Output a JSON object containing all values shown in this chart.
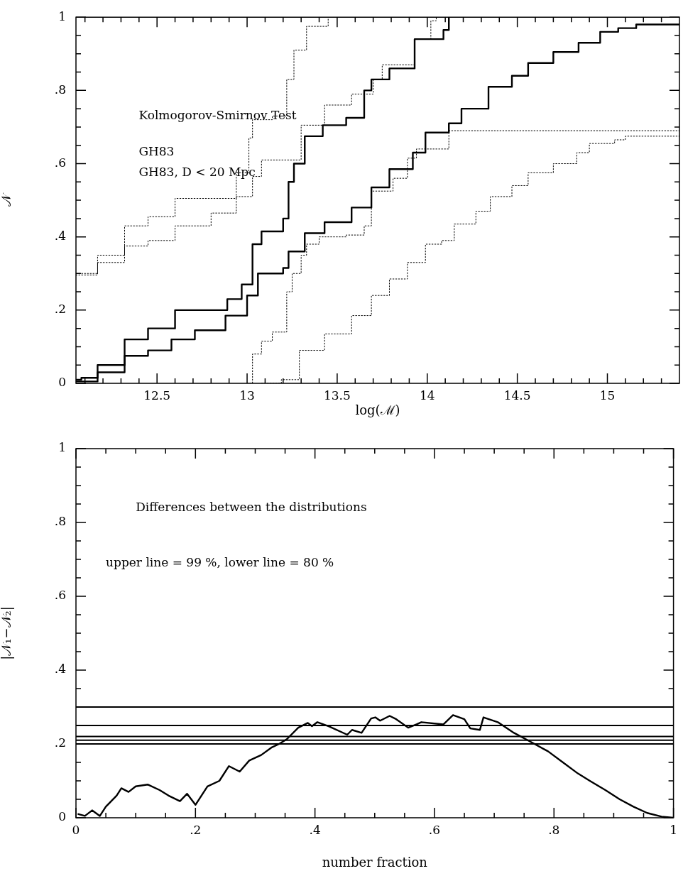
{
  "chart_data": [
    {
      "type": "step",
      "xlabel": "log(ℳ)",
      "ylabel": "𝒩",
      "xlim": [
        12.05,
        15.4
      ],
      "ylim": [
        0,
        1
      ],
      "marker": "none",
      "grid": false,
      "legend": false,
      "xticks": [
        {
          "value": 12.1,
          "label": null
        },
        {
          "value": 12.2,
          "label": null
        },
        {
          "value": 12.3,
          "label": null
        },
        {
          "value": 12.4,
          "label": null
        },
        {
          "value": 12.5,
          "label": "12.5"
        },
        {
          "value": 12.6,
          "label": null
        },
        {
          "value": 12.7,
          "label": null
        },
        {
          "value": 12.8,
          "label": null
        },
        {
          "value": 12.9,
          "label": null
        },
        13,
        {
          "value": 13.1,
          "label": null
        },
        {
          "value": 13.2,
          "label": null
        },
        {
          "value": 13.3,
          "label": null
        },
        {
          "value": 13.4,
          "label": null
        },
        13.5,
        {
          "value": 13.6,
          "label": null
        },
        {
          "value": 13.7,
          "label": null
        },
        {
          "value": 13.8,
          "label": null
        },
        {
          "value": 13.9,
          "label": null
        },
        14,
        {
          "value": 14.1,
          "label": null
        },
        {
          "value": 14.2,
          "label": null
        },
        {
          "value": 14.3,
          "label": null
        },
        {
          "value": 14.4,
          "label": null
        },
        14.5,
        {
          "value": 14.6,
          "label": null
        },
        {
          "value": 14.7,
          "label": null
        },
        {
          "value": 14.8,
          "label": null
        },
        {
          "value": 14.9,
          "label": null
        },
        15,
        {
          "value": 15.1,
          "label": null
        },
        {
          "value": 15.2,
          "label": null
        },
        {
          "value": 15.3,
          "label": null
        }
      ],
      "yticks": [
        {
          "value": 0,
          "label": "0"
        },
        {
          "value": 0.05,
          "label": null
        },
        {
          "value": 0.1,
          "label": null
        },
        {
          "value": 0.15,
          "label": null
        },
        {
          "value": 0.2,
          "label": ".2"
        },
        {
          "value": 0.25,
          "label": null
        },
        {
          "value": 0.3,
          "label": null
        },
        {
          "value": 0.35,
          "label": null
        },
        {
          "value": 0.4,
          "label": ".4"
        },
        {
          "value": 0.45,
          "label": null
        },
        {
          "value": 0.5,
          "label": null
        },
        {
          "value": 0.55,
          "label": null
        },
        {
          "value": 0.6,
          "label": ".6"
        },
        {
          "value": 0.65,
          "label": null
        },
        {
          "value": 0.7,
          "label": null
        },
        {
          "value": 0.75,
          "label": null
        },
        {
          "value": 0.8,
          "label": ".8"
        },
        {
          "value": 0.85,
          "label": null
        },
        {
          "value": 0.9,
          "label": null
        },
        {
          "value": 0.95,
          "label": null
        },
        {
          "value": 1,
          "label": "1"
        }
      ],
      "annotations": [
        "Kolmogorov-Smirnov Test",
        "GH83",
        "GH83, D < 20 Mpc"
      ],
      "series": [
        {
          "color": "#000000",
          "line_style": "dotted",
          "x": [
            12.05,
            12.17,
            12.32,
            12.45,
            12.6,
            12.94,
            13.01,
            13.03,
            13.14,
            13.22,
            13.26,
            13.33,
            13.45
          ],
          "values": [
            0.3,
            0.35,
            0.43,
            0.455,
            0.505,
            0.575,
            0.67,
            0.72,
            0.73,
            0.83,
            0.91,
            0.975,
            1
          ]
        },
        {
          "color": "#000000",
          "line_style": "dotted",
          "x": [
            12.05,
            12.17,
            12.32,
            12.45,
            12.6,
            12.8,
            12.94,
            13.03,
            13.08,
            13.3,
            13.43,
            13.58,
            13.7,
            13.75,
            13.93,
            14.02,
            14.05
          ],
          "values": [
            0.296,
            0.33,
            0.375,
            0.39,
            0.43,
            0.465,
            0.51,
            0.565,
            0.61,
            0.705,
            0.76,
            0.79,
            0.83,
            0.87,
            0.94,
            0.99,
            1
          ]
        },
        {
          "color": "#000000",
          "line_style": "solid",
          "x": [
            12.05,
            12.08,
            12.17,
            12.32,
            12.45,
            12.6,
            12.89,
            12.97,
            13.03,
            13.08,
            13.2,
            13.23,
            13.26,
            13.32,
            13.42,
            13.55,
            13.65,
            13.69,
            13.79,
            13.93,
            14.09,
            14.12
          ],
          "values": [
            0.01,
            0.015,
            0.05,
            0.12,
            0.15,
            0.2,
            0.23,
            0.27,
            0.38,
            0.415,
            0.45,
            0.55,
            0.6,
            0.675,
            0.705,
            0.725,
            0.8,
            0.83,
            0.86,
            0.94,
            0.965,
            1
          ]
        },
        {
          "color": "#000000",
          "line_style": "solid",
          "x": [
            12.05,
            12.17,
            12.32,
            12.45,
            12.58,
            12.71,
            12.88,
            13.0,
            13.06,
            13.2,
            13.23,
            13.32,
            13.43,
            13.58,
            13.69,
            13.79,
            13.92,
            13.99,
            14.12,
            14.19,
            14.34,
            14.47,
            14.56,
            14.7,
            14.84,
            14.96,
            15.06,
            15.16,
            15.4
          ],
          "values": [
            0.005,
            0.03,
            0.075,
            0.09,
            0.12,
            0.145,
            0.185,
            0.24,
            0.3,
            0.315,
            0.36,
            0.41,
            0.44,
            0.48,
            0.535,
            0.585,
            0.63,
            0.685,
            0.71,
            0.75,
            0.81,
            0.84,
            0.875,
            0.905,
            0.93,
            0.96,
            0.97,
            0.98,
            0.98
          ]
        },
        {
          "color": "#000000",
          "line_style": "dotted",
          "x": [
            13.0,
            13.03,
            13.08,
            13.14,
            13.22,
            13.25,
            13.3,
            13.33,
            13.4,
            13.55,
            13.65,
            13.69,
            13.81,
            13.89,
            13.94,
            14.12,
            15.4
          ],
          "values": [
            0,
            0.08,
            0.115,
            0.14,
            0.25,
            0.3,
            0.35,
            0.38,
            0.4,
            0.405,
            0.43,
            0.525,
            0.56,
            0.615,
            0.64,
            0.69,
            0.685
          ]
        },
        {
          "color": "#000000",
          "line_style": "dotted",
          "x": [
            13.08,
            13.19,
            13.29,
            13.43,
            13.58,
            13.69,
            13.79,
            13.89,
            13.99,
            14.08,
            14.15,
            14.27,
            14.35,
            14.47,
            14.56,
            14.7,
            14.83,
            14.9,
            15.04,
            15.1,
            15.4
          ],
          "values": [
            0,
            0.01,
            0.09,
            0.135,
            0.185,
            0.24,
            0.285,
            0.33,
            0.38,
            0.39,
            0.435,
            0.47,
            0.51,
            0.54,
            0.575,
            0.6,
            0.63,
            0.655,
            0.665,
            0.675,
            0.675
          ]
        }
      ]
    },
    {
      "type": "line",
      "xlabel": "number fraction",
      "ylabel": "|𝒩₁−𝒩₂|",
      "xlim": [
        0,
        1
      ],
      "ylim": [
        0,
        1
      ],
      "marker": "none",
      "grid": false,
      "legend": false,
      "xticks": [
        0,
        {
          "value": 0.05,
          "label": null
        },
        {
          "value": 0.1,
          "label": null
        },
        {
          "value": 0.15,
          "label": null
        },
        {
          "value": 0.2,
          "label": ".2"
        },
        {
          "value": 0.25,
          "label": null
        },
        {
          "value": 0.3,
          "label": null
        },
        {
          "value": 0.35,
          "label": null
        },
        {
          "value": 0.4,
          "label": ".4"
        },
        {
          "value": 0.45,
          "label": null
        },
        {
          "value": 0.5,
          "label": null
        },
        {
          "value": 0.55,
          "label": null
        },
        {
          "value": 0.6,
          "label": ".6"
        },
        {
          "value": 0.65,
          "label": null
        },
        {
          "value": 0.7,
          "label": null
        },
        {
          "value": 0.75,
          "label": null
        },
        {
          "value": 0.8,
          "label": ".8"
        },
        {
          "value": 0.85,
          "label": null
        },
        {
          "value": 0.9,
          "label": null
        },
        {
          "value": 0.95,
          "label": null
        },
        1
      ],
      "yticks": [
        0,
        {
          "value": 0.05,
          "label": null
        },
        {
          "value": 0.1,
          "label": null
        },
        {
          "value": 0.15,
          "label": null
        },
        {
          "value": 0.2,
          "label": ".2"
        },
        {
          "value": 0.25,
          "label": null
        },
        {
          "value": 0.3,
          "label": null
        },
        {
          "value": 0.35,
          "label": null
        },
        {
          "value": 0.4,
          "label": ".4"
        },
        {
          "value": 0.45,
          "label": null
        },
        {
          "value": 0.5,
          "label": null
        },
        {
          "value": 0.55,
          "label": null
        },
        {
          "value": 0.6,
          "label": ".6"
        },
        {
          "value": 0.65,
          "label": null
        },
        {
          "value": 0.7,
          "label": null
        },
        {
          "value": 0.75,
          "label": null
        },
        {
          "value": 0.8,
          "label": ".8"
        },
        {
          "value": 0.85,
          "label": null
        },
        {
          "value": 0.9,
          "label": null
        },
        {
          "value": 0.95,
          "label": null
        },
        1
      ],
      "annotations": [
        "Differences between the distributions",
        "upper line = 99 %, lower line = 80 %"
      ],
      "ref_lines": [
        {
          "axis": "y",
          "value": 0.3
        },
        {
          "axis": "y",
          "value": 0.25
        },
        {
          "axis": "y",
          "value": 0.22
        },
        {
          "axis": "y",
          "value": 0.21
        },
        {
          "axis": "y",
          "value": 0.2
        }
      ],
      "series": [
        {
          "color": "#000000",
          "line_style": "solid",
          "x": [
            0.004,
            0.015,
            0.027,
            0.04,
            0.05,
            0.068,
            0.076,
            0.088,
            0.1,
            0.12,
            0.14,
            0.155,
            0.174,
            0.186,
            0.2,
            0.22,
            0.24,
            0.256,
            0.274,
            0.29,
            0.31,
            0.327,
            0.34,
            0.353,
            0.372,
            0.388,
            0.395,
            0.404,
            0.423,
            0.454,
            0.462,
            0.478,
            0.494,
            0.501,
            0.509,
            0.525,
            0.536,
            0.556,
            0.57,
            0.578,
            0.615,
            0.631,
            0.65,
            0.66,
            0.676,
            0.682,
            0.706,
            0.733,
            0.756,
            0.79,
            0.815,
            0.84,
            0.86,
            0.886,
            0.91,
            0.933,
            0.956,
            0.98,
            1.0
          ],
          "values": [
            0.01,
            0.005,
            0.02,
            0.005,
            0.03,
            0.06,
            0.08,
            0.07,
            0.085,
            0.09,
            0.075,
            0.06,
            0.045,
            0.065,
            0.035,
            0.085,
            0.1,
            0.14,
            0.125,
            0.155,
            0.17,
            0.19,
            0.2,
            0.213,
            0.244,
            0.257,
            0.248,
            0.259,
            0.248,
            0.225,
            0.238,
            0.23,
            0.269,
            0.272,
            0.263,
            0.276,
            0.267,
            0.244,
            0.253,
            0.259,
            0.253,
            0.278,
            0.267,
            0.242,
            0.238,
            0.272,
            0.259,
            0.23,
            0.21,
            0.18,
            0.15,
            0.12,
            0.1,
            0.075,
            0.05,
            0.03,
            0.013,
            0.003,
            0
          ]
        }
      ]
    }
  ]
}
